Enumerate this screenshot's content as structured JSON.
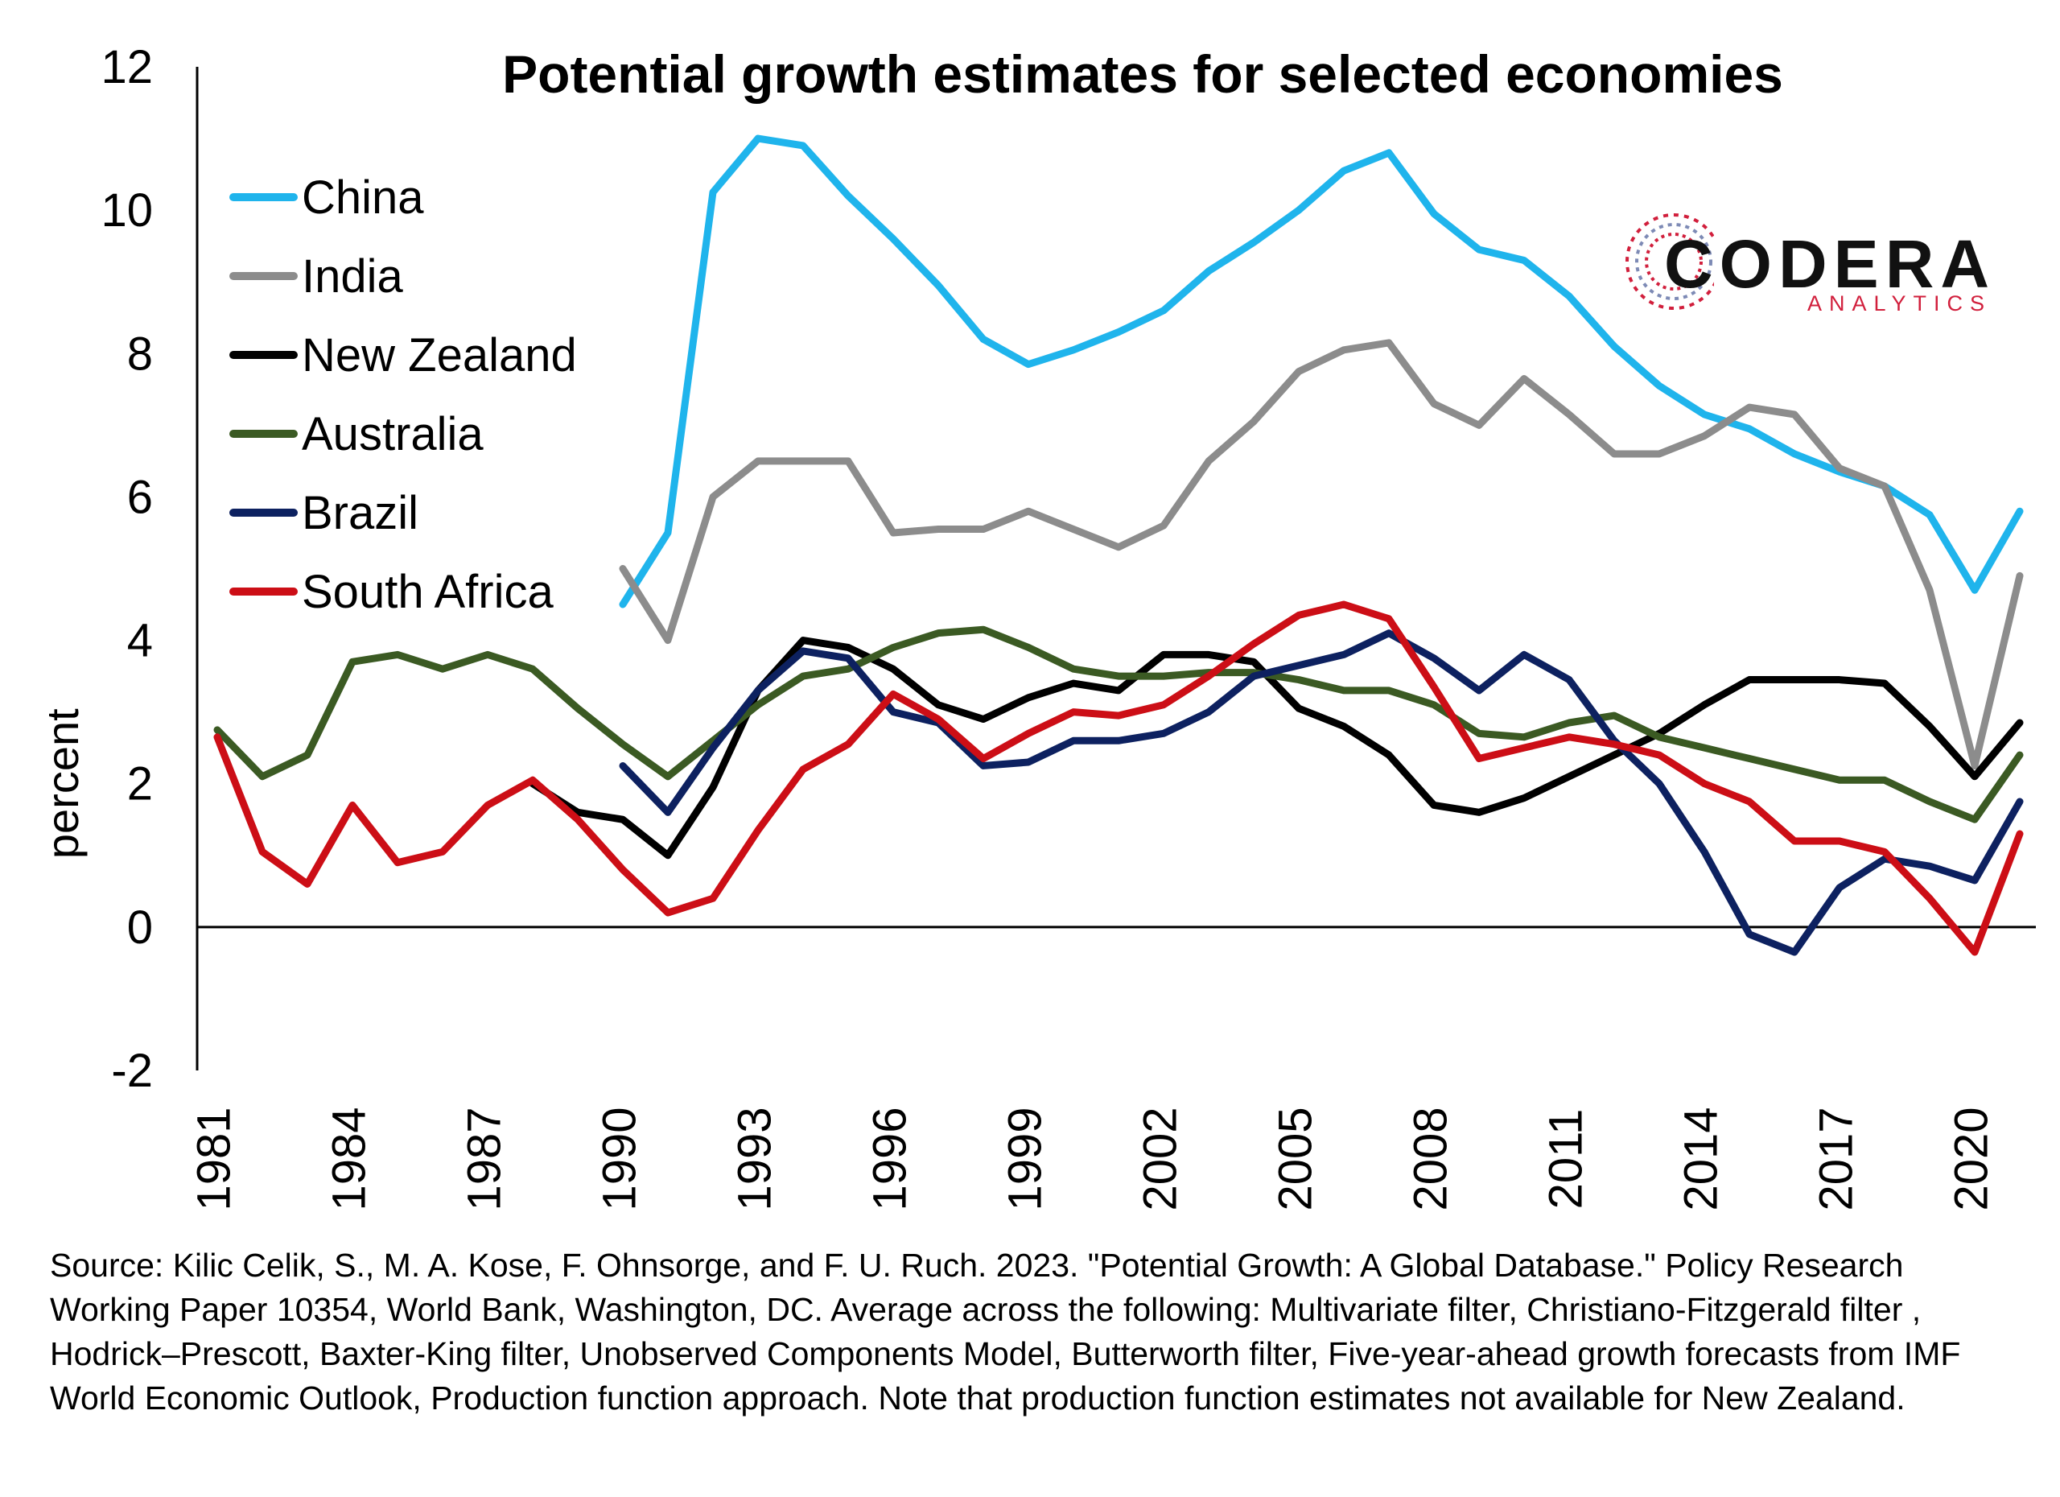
{
  "chart_data": {
    "type": "line",
    "title": "Potential growth estimates for selected economies",
    "xlabel": "",
    "ylabel": "percent",
    "xlim": [
      1981,
      2021
    ],
    "ylim": [
      -2,
      12
    ],
    "yticks": [
      -2,
      0,
      2,
      4,
      6,
      8,
      10,
      12
    ],
    "xticks": [
      1981,
      1984,
      1987,
      1990,
      1993,
      1996,
      1999,
      2002,
      2005,
      2008,
      2011,
      2014,
      2017,
      2020
    ],
    "legend_position": "top-left",
    "grid": false,
    "series": [
      {
        "name": "China",
        "color": "#1fb4ec",
        "start": 1990,
        "values": [
          4.5,
          5.5,
          10.25,
          11.0,
          10.9,
          10.2,
          9.6,
          8.95,
          8.2,
          7.85,
          8.05,
          8.3,
          8.6,
          9.15,
          9.55,
          10.0,
          10.55,
          10.8,
          9.95,
          9.45,
          9.3,
          8.8,
          8.1,
          7.55,
          7.15,
          6.95,
          6.6,
          6.35,
          6.15,
          5.75,
          4.7,
          5.8
        ]
      },
      {
        "name": "India",
        "color": "#8c8c8c",
        "start": 1990,
        "values": [
          5.0,
          4.0,
          6.0,
          6.5,
          6.5,
          6.5,
          5.5,
          5.55,
          5.55,
          5.8,
          5.55,
          5.3,
          5.6,
          6.5,
          7.05,
          7.75,
          8.05,
          8.15,
          7.3,
          7.0,
          7.65,
          7.15,
          6.6,
          6.6,
          6.85,
          7.25,
          7.15,
          6.4,
          6.15,
          4.7,
          2.25,
          4.9
        ]
      },
      {
        "name": "New Zealand",
        "color": "#000000",
        "start": 1988,
        "values": [
          2.0,
          1.6,
          1.5,
          1.0,
          1.95,
          3.3,
          4.0,
          3.9,
          3.6,
          3.1,
          2.9,
          3.2,
          3.4,
          3.3,
          3.8,
          3.8,
          3.7,
          3.05,
          2.8,
          2.4,
          1.7,
          1.6,
          1.8,
          2.1,
          2.4,
          2.7,
          3.1,
          3.45,
          3.45,
          3.45,
          3.4,
          2.8,
          2.1,
          2.85
        ]
      },
      {
        "name": "Australia",
        "color": "#3b5a23",
        "start": 1981,
        "values": [
          2.75,
          2.1,
          2.4,
          3.7,
          3.8,
          3.6,
          3.8,
          3.6,
          3.05,
          2.55,
          2.1,
          2.6,
          3.1,
          3.5,
          3.6,
          3.9,
          4.1,
          4.15,
          3.9,
          3.6,
          3.5,
          3.5,
          3.55,
          3.55,
          3.45,
          3.3,
          3.3,
          3.1,
          2.7,
          2.65,
          2.85,
          2.95,
          2.65,
          2.5,
          2.35,
          2.2,
          2.05,
          2.05,
          1.75,
          1.5,
          2.4
        ]
      },
      {
        "name": "Brazil",
        "color": "#0d2160",
        "start": 1990,
        "values": [
          2.25,
          1.6,
          2.5,
          3.3,
          3.85,
          3.75,
          3.0,
          2.85,
          2.25,
          2.3,
          2.6,
          2.6,
          2.7,
          3.0,
          3.5,
          3.65,
          3.8,
          4.1,
          3.75,
          3.3,
          3.8,
          3.45,
          2.6,
          2.0,
          1.05,
          -0.1,
          -0.35,
          0.55,
          0.95,
          0.85,
          0.65,
          1.75
        ]
      },
      {
        "name": "South Africa",
        "color": "#cc0e16",
        "start": 1981,
        "values": [
          2.65,
          1.05,
          0.6,
          1.7,
          0.9,
          1.05,
          1.7,
          2.05,
          1.5,
          0.8,
          0.2,
          0.4,
          1.35,
          2.2,
          2.55,
          3.25,
          2.9,
          2.35,
          2.7,
          3.0,
          2.95,
          3.1,
          3.5,
          3.95,
          4.35,
          4.5,
          4.3,
          3.35,
          2.35,
          2.5,
          2.65,
          2.55,
          2.4,
          2.0,
          1.75,
          1.2,
          1.2,
          1.05,
          0.4,
          -0.35,
          1.3
        ]
      }
    ]
  },
  "source_note": "Source: Kilic Celik, S., M. A. Kose, F. Ohnsorge, and F. U. Ruch. 2023. \"Potential Growth: A Global Database.\" Policy Research Working Paper 10354, World Bank, Washington, DC. Average across the following: Multivariate filter, Christiano-Fitzgerald filter , Hodrick–Prescott, Baxter-King filter, Unobserved Components Model, Butterworth filter, Five-year-ahead growth forecasts from IMF World Economic Outlook, Production function approach. Note that production function estimates not available for New Zealand.",
  "logo": {
    "name": "CODERA",
    "sub": "ANALYTICS",
    "accent": "#d11f3c"
  }
}
